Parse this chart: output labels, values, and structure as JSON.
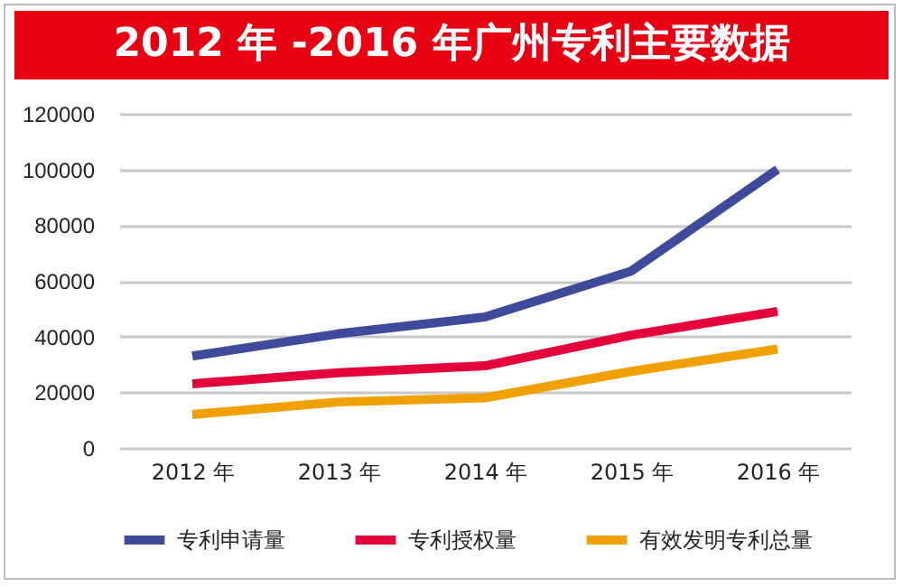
{
  "chart_data": {
    "type": "line",
    "title": "2012 年 -2016 年广州专利主要数据",
    "categories": [
      "2012 年",
      "2013 年",
      "2014 年",
      "2015 年",
      "2016 年"
    ],
    "series": [
      {
        "name": "专利申请量",
        "color": "#3e4a9a",
        "values": [
          33000,
          41000,
          47000,
          63500,
          100000
        ]
      },
      {
        "name": "专利授权量",
        "color": "#e4003a",
        "values": [
          23000,
          27000,
          29500,
          40500,
          49000
        ]
      },
      {
        "name": "有效发明专利总量",
        "color": "#f0a000",
        "values": [
          12000,
          16500,
          18000,
          27500,
          35500
        ]
      }
    ],
    "ylim": [
      0,
      120000
    ],
    "yticks": [
      0,
      20000,
      40000,
      60000,
      80000,
      100000,
      120000
    ],
    "grid": "y",
    "legend": "bottom",
    "marker": "none",
    "line_style": "solid"
  }
}
